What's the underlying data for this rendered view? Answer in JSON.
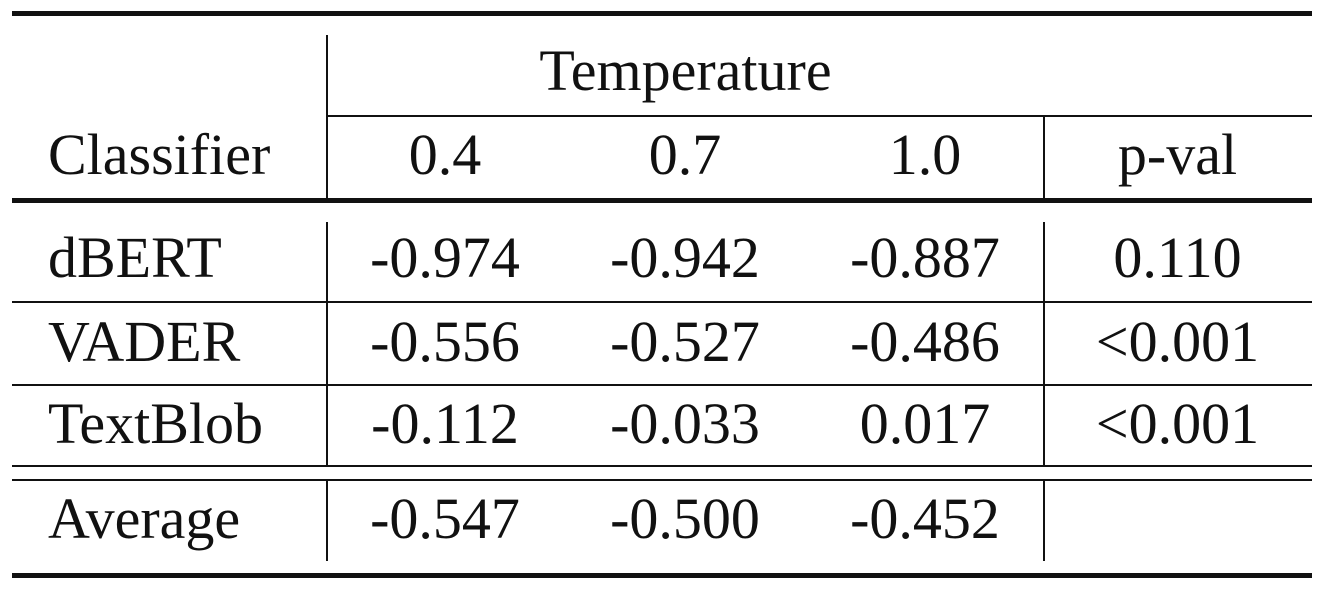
{
  "table": {
    "group_header": "Temperature",
    "header": {
      "classifier": "Classifier",
      "temps": [
        "0.4",
        "0.7",
        "1.0"
      ],
      "pval": "p-val"
    },
    "rows": [
      {
        "name": "dBERT",
        "values": [
          "-0.974",
          "-0.942",
          "-0.887"
        ],
        "pval": "0.110"
      },
      {
        "name": "VADER",
        "values": [
          "-0.556",
          "-0.527",
          "-0.486"
        ],
        "pval": "<0.001"
      },
      {
        "name": "TextBlob",
        "values": [
          "-0.112",
          "-0.033",
          "0.017"
        ],
        "pval": "<0.001"
      }
    ],
    "average": {
      "name": "Average",
      "values": [
        "-0.547",
        "-0.500",
        "-0.452"
      ],
      "pval": ""
    }
  }
}
